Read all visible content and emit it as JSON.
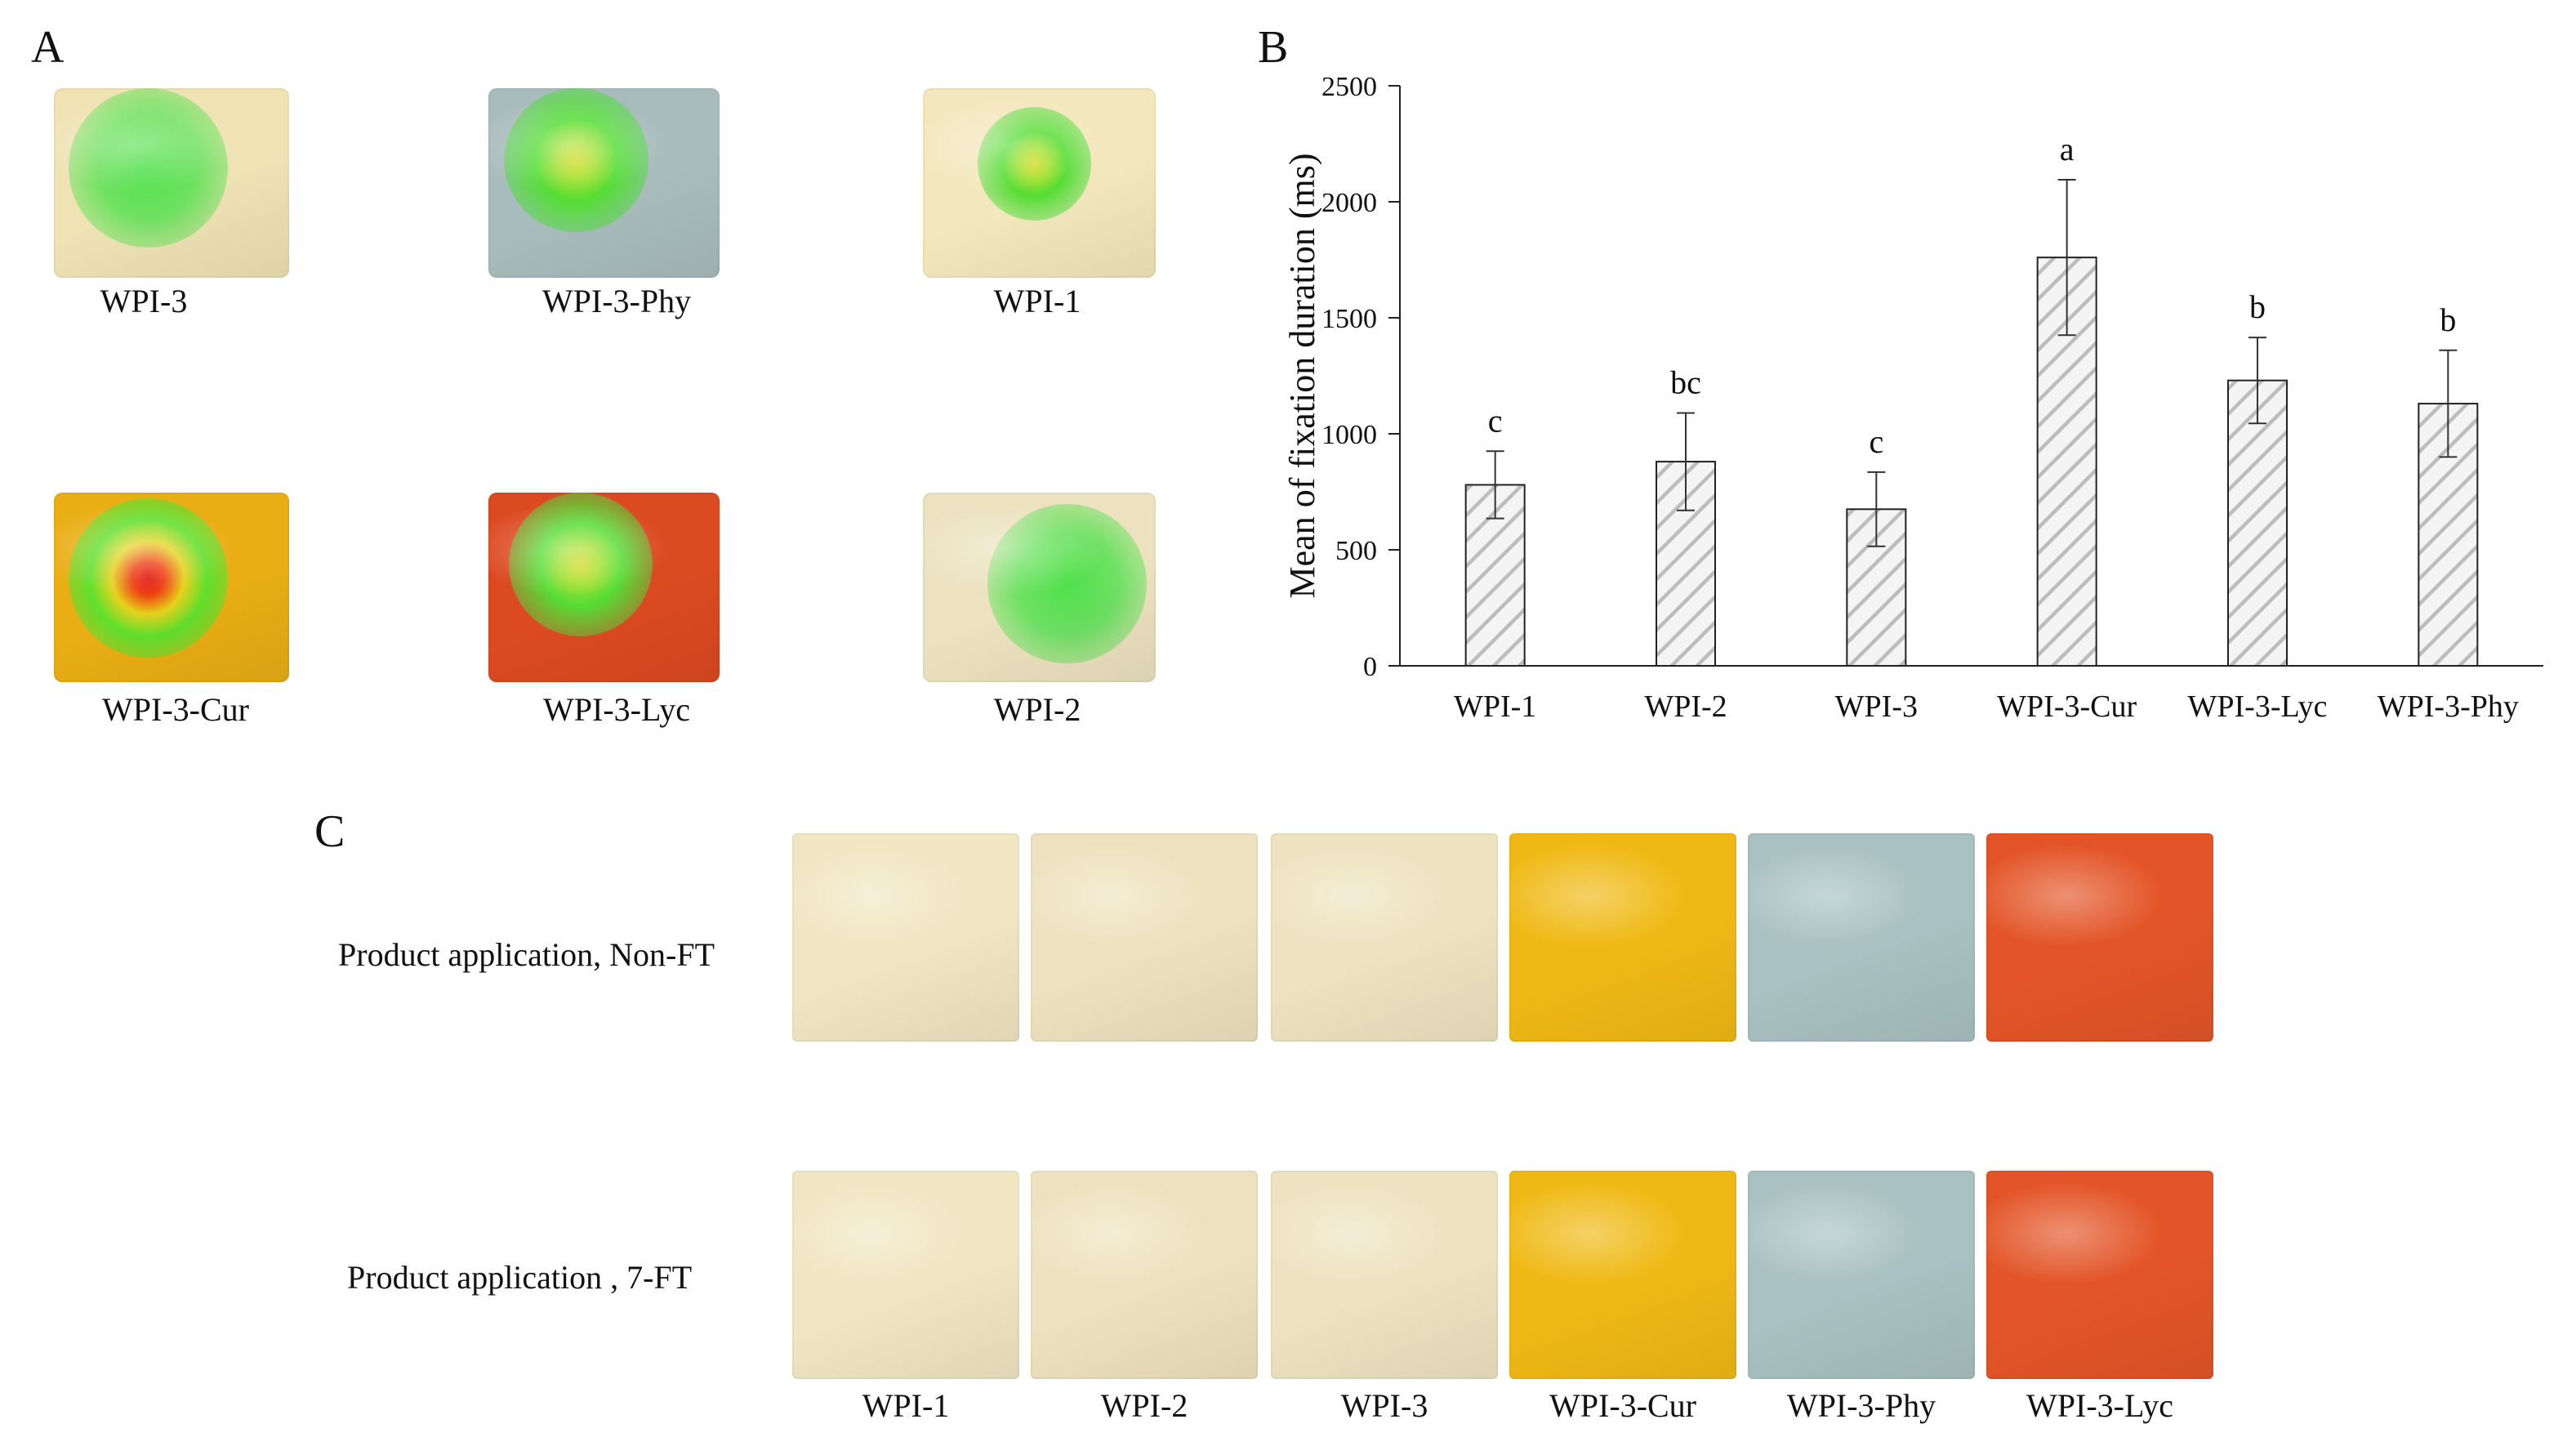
{
  "panels": {
    "a": "A",
    "b": "B",
    "c": "C"
  },
  "panel_a": {
    "items": [
      {
        "label": "WPI-3",
        "color": "#efe3b4",
        "heat": "green"
      },
      {
        "label": "WPI-3-Phy",
        "color": "#a9bcbc",
        "heat": "green-yellow"
      },
      {
        "label": "WPI-1",
        "color": "#f3e7bd",
        "heat": "green-yellow"
      },
      {
        "label": "WPI-3-Cur",
        "color": "#e9ae14",
        "heat": "red"
      },
      {
        "label": "WPI-3-Lyc",
        "color": "#dc4a22",
        "heat": "green-yellow"
      },
      {
        "label": "WPI-2",
        "color": "#ece2bf",
        "heat": "green"
      }
    ]
  },
  "panel_c": {
    "row_labels": [
      "Product application, Non-FT",
      "Product application , 7-FT"
    ],
    "columns": [
      "WPI-1",
      "WPI-2",
      "WPI-3",
      "WPI-3-Cur",
      "WPI-3-Phy",
      "WPI-3-Lyc"
    ],
    "colors": [
      "#f1e6c2",
      "#eee2be",
      "#eee3c0",
      "#efb915",
      "#a9c1c2",
      "#e35528"
    ]
  },
  "chart_data": {
    "type": "bar",
    "categories": [
      "WPI-1",
      "WPI-2",
      "WPI-3",
      "WPI-3-Cur",
      "WPI-3-Lyc",
      "WPI-3-Phy"
    ],
    "values": [
      780,
      880,
      675,
      1760,
      1230,
      1130
    ],
    "errors": [
      145,
      210,
      160,
      335,
      185,
      230
    ],
    "letters": [
      "c",
      "bc",
      "c",
      "a",
      "b",
      "b"
    ],
    "ylabel": "Mean of fixation duration (ms)",
    "xlabel": "",
    "ylim": [
      0,
      2500
    ],
    "yticks": [
      0,
      500,
      1000,
      1500,
      2000,
      2500
    ],
    "bar_pattern": "diagonal hatch",
    "grid": false
  }
}
